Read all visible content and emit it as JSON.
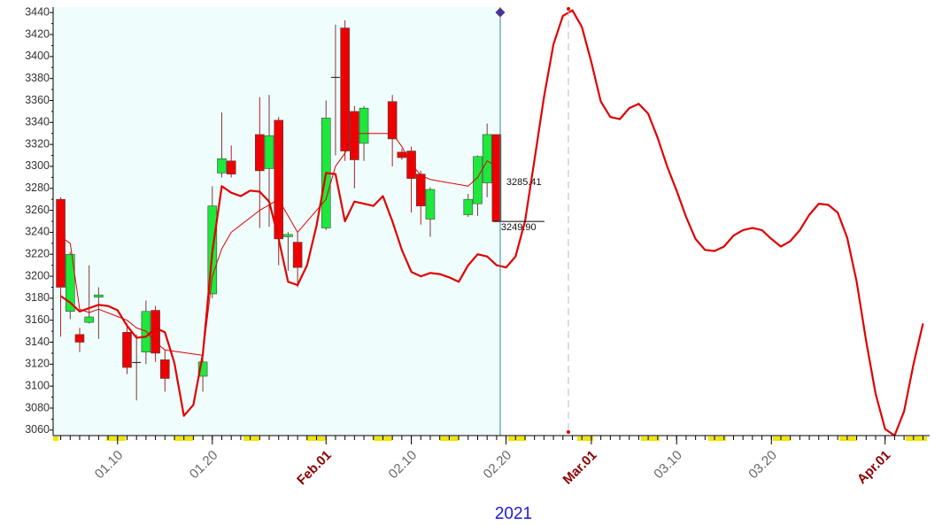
{
  "chart_data": {
    "type": "candlestick",
    "x_label": "2021",
    "xlim": [
      3.2,
      95.7
    ],
    "ylim": [
      3055,
      3445
    ],
    "xticks": [
      {
        "value": 10,
        "label": "01.10"
      },
      {
        "value": 20,
        "label": "01.20"
      },
      {
        "value": 32,
        "label": "Feb.01"
      },
      {
        "value": 41,
        "label": "02.10"
      },
      {
        "value": 51,
        "label": "02.20"
      },
      {
        "value": 60,
        "label": "Mar.01"
      },
      {
        "value": 69,
        "label": "03.10"
      },
      {
        "value": 79,
        "label": "03.20"
      },
      {
        "value": 91,
        "label": "Apr.01"
      }
    ],
    "yticks": [
      3060,
      3080,
      3100,
      3120,
      3140,
      3160,
      3180,
      3200,
      3220,
      3240,
      3260,
      3280,
      3300,
      3320,
      3340,
      3360,
      3380,
      3400,
      3420,
      3440
    ],
    "up_color": "#1ee83c",
    "down_color": "#ee0000",
    "candles": {
      "x": [
        4,
        5,
        6,
        7,
        8,
        11,
        12,
        13,
        14,
        15,
        19,
        20,
        21,
        22,
        25,
        26,
        27,
        28,
        29,
        32,
        33,
        34,
        35,
        36,
        39,
        40,
        41,
        42,
        43,
        47,
        48,
        49,
        50
      ],
      "open": [
        3270,
        3168,
        3147,
        3158,
        3181,
        3149,
        3121,
        3131,
        3169,
        3124,
        3109,
        3184,
        3294,
        3305,
        3329,
        3298,
        3342,
        3236,
        3231,
        3244,
        3381,
        3426,
        3350,
        3321,
        3359,
        3313,
        3314,
        3293,
        3252,
        3256,
        3266,
        3285,
        3329
      ],
      "high": [
        3272,
        3222,
        3153,
        3210,
        3190,
        3157,
        3147,
        3178,
        3173,
        3133,
        3128,
        3282,
        3349,
        3319,
        3363,
        3365,
        3345,
        3240,
        3240,
        3360,
        3429,
        3433,
        3355,
        3355,
        3365,
        3316,
        3318,
        3296,
        3281,
        3275,
        3310,
        3339,
        3329
      ],
      "low": [
        3145,
        3161,
        3131,
        3157,
        3143,
        3111,
        3087,
        3120,
        3122,
        3095,
        3095,
        3180,
        3290,
        3290,
        3244,
        3245,
        3210,
        3205,
        3190,
        3242,
        3310,
        3305,
        3280,
        3305,
        3300,
        3306,
        3258,
        3247,
        3236,
        3254,
        3255,
        3272,
        3249.9
      ],
      "close": [
        3190,
        3220,
        3140,
        3163,
        3183,
        3117,
        3122,
        3168,
        3130,
        3107,
        3122,
        3264,
        3307,
        3293,
        3296,
        3328,
        3234,
        3238,
        3208,
        3344,
        3381,
        3314,
        3306,
        3353,
        3325,
        3308,
        3289,
        3264,
        3279,
        3270,
        3309,
        3329,
        3249.9
      ]
    },
    "series": [
      {
        "color": "#e00000",
        "width": 1,
        "x": [
          4,
          5,
          6,
          7,
          8,
          11,
          12,
          13,
          14,
          15,
          19,
          20,
          21,
          22,
          25,
          26,
          27,
          28,
          29,
          32,
          33,
          34,
          35,
          36,
          39,
          40,
          41,
          42,
          43,
          47,
          48,
          49,
          50
        ],
        "values": [
          3236,
          3230,
          3170,
          3167,
          3170,
          3160,
          3153,
          3150,
          3140,
          3133,
          3128,
          3200,
          3225,
          3240,
          3260,
          3265,
          3270,
          3255,
          3240,
          3270,
          3300,
          3312,
          3330,
          3330,
          3330,
          3318,
          3302,
          3292,
          3288,
          3282,
          3290,
          3305,
          3300
        ]
      },
      {
        "color": "#e00000",
        "width": 2.2,
        "x": [
          4,
          5,
          6,
          7,
          8,
          9,
          10,
          11,
          12,
          13,
          14,
          15,
          16,
          17,
          18,
          19,
          20,
          21,
          22,
          23,
          24,
          25,
          26,
          27,
          28,
          29,
          30,
          31,
          32,
          33,
          34,
          35,
          36,
          37,
          38,
          39,
          40,
          41,
          42,
          43,
          44,
          45,
          46,
          47,
          48,
          49,
          50,
          51,
          52,
          53,
          54,
          55,
          56,
          57,
          58,
          59,
          60,
          61,
          62,
          63,
          64,
          65,
          66,
          67,
          68,
          69,
          70,
          71,
          72,
          73,
          74,
          75,
          76,
          77,
          78,
          79,
          80,
          81,
          82,
          83,
          84,
          85,
          86,
          87,
          88,
          89,
          90,
          91,
          92,
          93,
          94,
          95
        ],
        "values": [
          3182,
          3176,
          3168,
          3171,
          3174,
          3173,
          3169,
          3155,
          3144,
          3145,
          3153,
          3149,
          3121,
          3073,
          3083,
          3129,
          3222,
          3282,
          3276,
          3273,
          3278,
          3277,
          3268,
          3234,
          3195,
          3192,
          3210,
          3246,
          3294,
          3293,
          3250,
          3268,
          3266,
          3264,
          3273,
          3250,
          3224,
          3204,
          3200,
          3203,
          3202,
          3199,
          3195,
          3210,
          3220,
          3218,
          3210,
          3208,
          3218,
          3250,
          3306,
          3363,
          3411,
          3437,
          3442,
          3427,
          3395,
          3359,
          3345,
          3343,
          3353,
          3357,
          3348,
          3326,
          3300,
          3278,
          3254,
          3234,
          3224,
          3223,
          3227,
          3237,
          3242,
          3244,
          3242,
          3234,
          3227,
          3232,
          3242,
          3256,
          3266,
          3265,
          3258,
          3235,
          3195,
          3141,
          3093,
          3061,
          3055,
          3077,
          3120,
          3157
        ]
      }
    ],
    "annotations": [
      {
        "value": 3285.41,
        "label": "3285.41"
      },
      {
        "value": 3249.9,
        "label": "3249.90"
      }
    ]
  }
}
